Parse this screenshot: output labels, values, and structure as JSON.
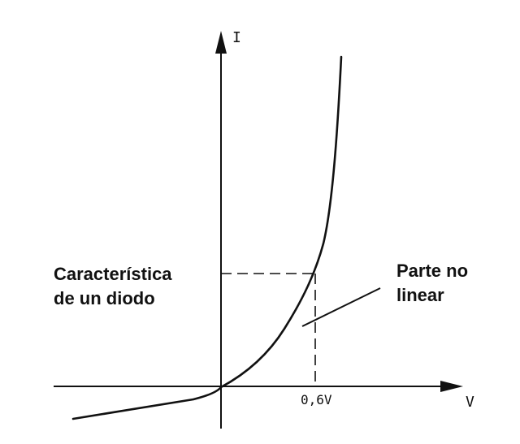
{
  "diagram": {
    "y_axis_label": "I",
    "x_axis_label": "V",
    "knee_voltage_label": "0,6V",
    "title_lines": [
      "Característica",
      "de un diodo"
    ],
    "callout_lines": [
      "Parte no",
      "linear"
    ]
  },
  "colors": {
    "ink": "#111111",
    "background": "#ffffff"
  }
}
